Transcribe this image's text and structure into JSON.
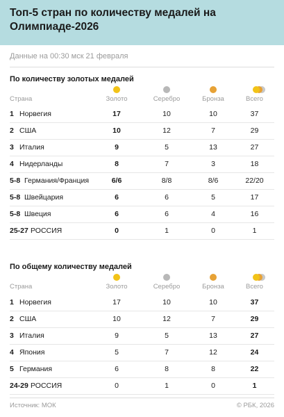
{
  "title": "Топ-5 стран по количеству медалей на Олимпиаде-2026",
  "subtitle": "Данные на 00:30 мск 21 февраля",
  "columns": {
    "country": "Страна",
    "gold": "Золото",
    "silver": "Серебро",
    "bronze": "Бронза",
    "total": "Всего"
  },
  "colors": {
    "header_bg": "#b5dce0",
    "gold": "#f2c318",
    "silver": "#b8b8b8",
    "bronze": "#e7a236"
  },
  "section1": {
    "title": "По количеству золотых медалей",
    "rows": [
      {
        "rank": "1",
        "country": "Норвегия",
        "gold": "17",
        "silver": "10",
        "bronze": "10",
        "total": "37"
      },
      {
        "rank": "2",
        "country": "США",
        "gold": "10",
        "silver": "12",
        "bronze": "7",
        "total": "29"
      },
      {
        "rank": "3",
        "country": "Италия",
        "gold": "9",
        "silver": "5",
        "bronze": "13",
        "total": "27"
      },
      {
        "rank": "4",
        "country": "Нидерланды",
        "gold": "8",
        "silver": "7",
        "bronze": "3",
        "total": "18"
      },
      {
        "rank": "5-8",
        "country": "Германия/Франция",
        "gold": "6/6",
        "silver": "8/8",
        "bronze": "8/6",
        "total": "22/20"
      },
      {
        "rank": "5-8",
        "country": "Швейцария",
        "gold": "6",
        "silver": "6",
        "bronze": "5",
        "total": "17"
      },
      {
        "rank": "5-8",
        "country": "Швеция",
        "gold": "6",
        "silver": "6",
        "bronze": "4",
        "total": "16"
      },
      {
        "rank": "25-27",
        "country": "РОССИЯ",
        "gold": "0",
        "silver": "1",
        "bronze": "0",
        "total": "1"
      }
    ]
  },
  "section2": {
    "title": "По общему количеству медалей",
    "rows": [
      {
        "rank": "1",
        "country": "Норвегия",
        "gold": "17",
        "silver": "10",
        "bronze": "10",
        "total": "37"
      },
      {
        "rank": "2",
        "country": "США",
        "gold": "10",
        "silver": "12",
        "bronze": "7",
        "total": "29"
      },
      {
        "rank": "3",
        "country": "Италия",
        "gold": "9",
        "silver": "5",
        "bronze": "13",
        "total": "27"
      },
      {
        "rank": "4",
        "country": "Япония",
        "gold": "5",
        "silver": "7",
        "bronze": "12",
        "total": "24"
      },
      {
        "rank": "5",
        "country": "Германия",
        "gold": "6",
        "silver": "8",
        "bronze": "8",
        "total": "22"
      },
      {
        "rank": "24-29",
        "country": "РОССИЯ",
        "gold": "0",
        "silver": "1",
        "bronze": "0",
        "total": "1"
      }
    ]
  },
  "footer": {
    "source": "Источник: МОК",
    "copyright": "© РБК, 2026"
  }
}
